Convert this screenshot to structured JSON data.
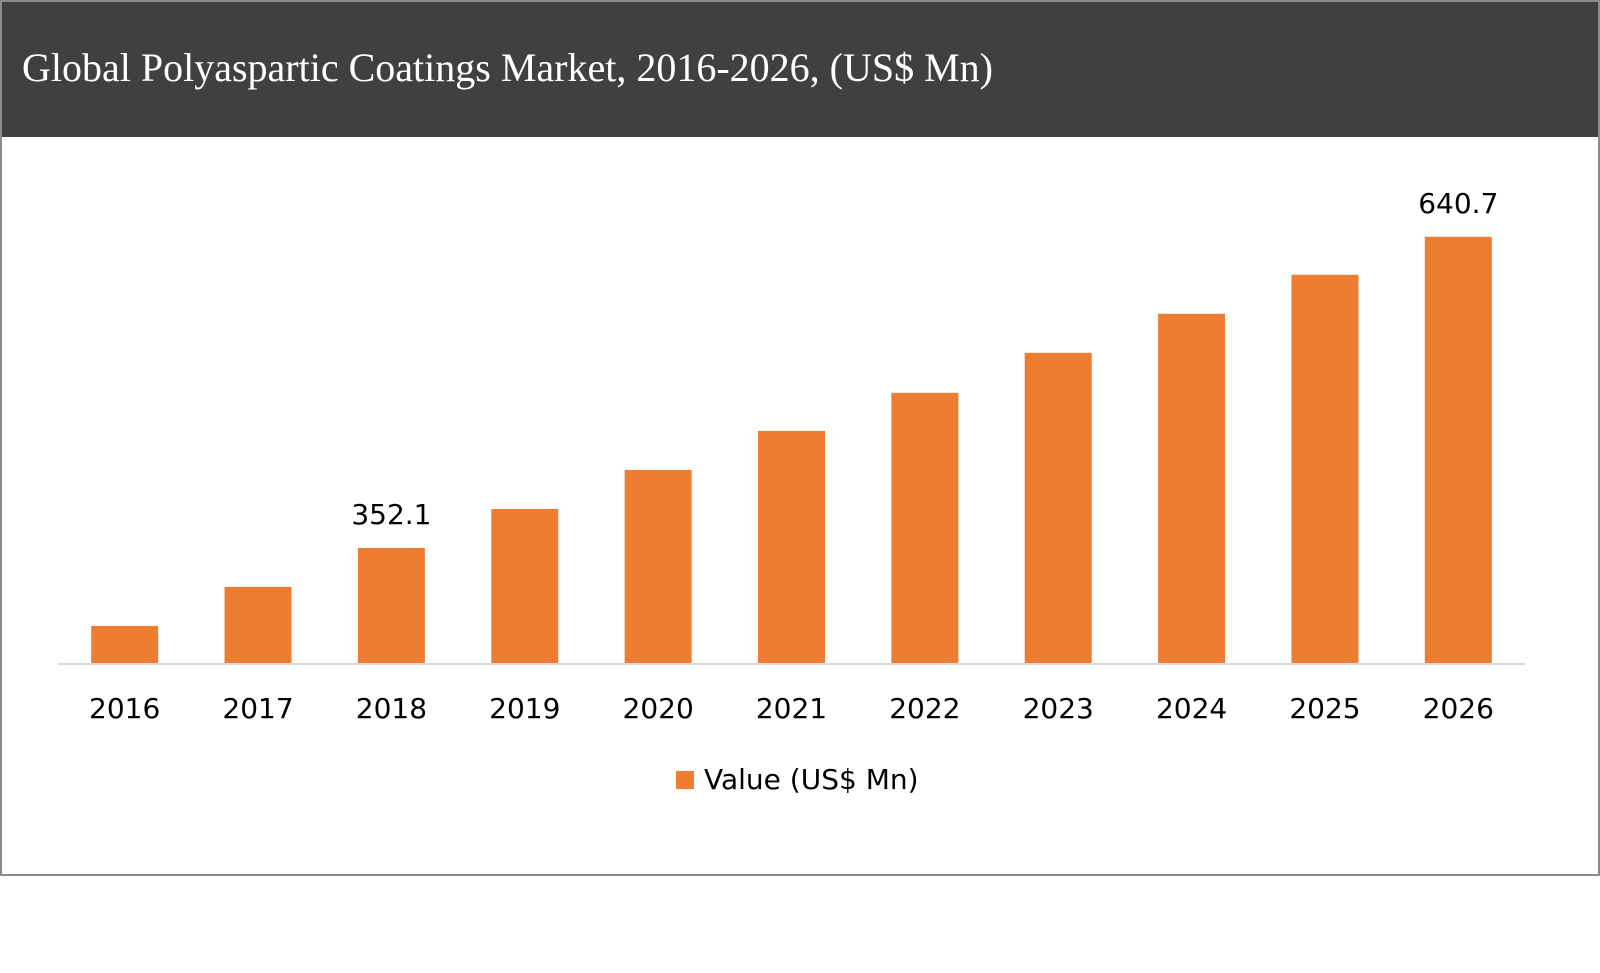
{
  "chart_data": {
    "type": "bar",
    "title": "Global Polyaspartic Coatings Market, 2016-2026, (US$ Mn)",
    "categories": [
      "2016",
      "2017",
      "2018",
      "2019",
      "2020",
      "2021",
      "2022",
      "2023",
      "2024",
      "2025",
      "2026"
    ],
    "series": [
      {
        "name": "Value (US$ Mn)",
        "color": "#ed7d31",
        "values": [
          279.8,
          316.0,
          352.1,
          388.3,
          424.5,
          460.7,
          496.0,
          533.1,
          569.3,
          605.5,
          640.7
        ],
        "value_labels": [
          null,
          null,
          "352.1",
          null,
          null,
          null,
          null,
          null,
          null,
          null,
          "640.7"
        ]
      }
    ],
    "ylim": [
      244.5,
      660
    ],
    "legend": "bottom"
  }
}
